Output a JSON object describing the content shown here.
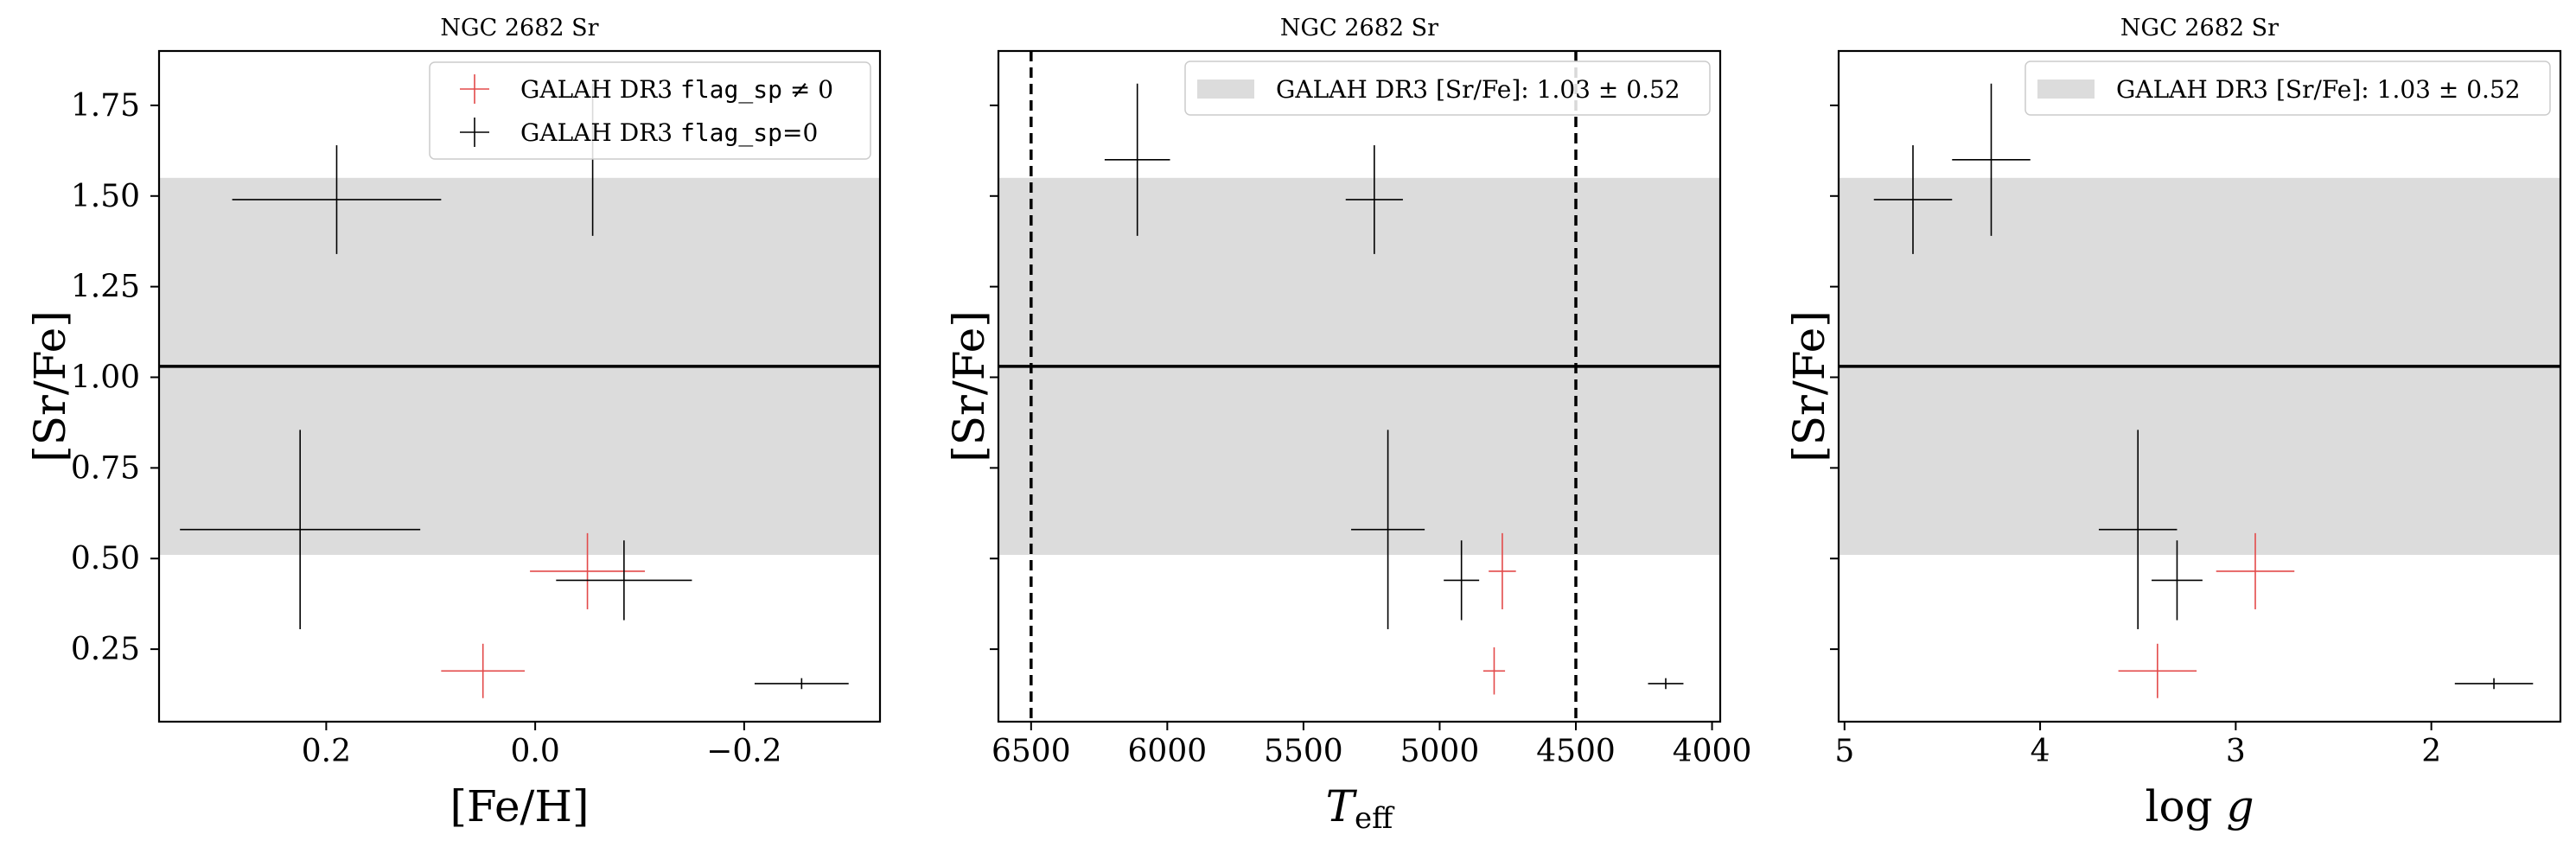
{
  "figure": {
    "colors": {
      "flagged": "#e34a4a",
      "clean": "#000000",
      "band": "#dcdcdc"
    }
  },
  "chart_data": [
    {
      "type": "scatter",
      "title": "NGC 2682 Sr",
      "xlabel": "[Fe/H]",
      "ylabel": "[Sr/Fe]",
      "xlim": [
        0.36,
        -0.33
      ],
      "ylim": [
        0.05,
        1.9
      ],
      "x_inverted": true,
      "xticks": [
        0.2,
        0.0,
        -0.2
      ],
      "xtick_labels": [
        "0.2",
        "0.0",
        "−0.2"
      ],
      "yticks": [
        0.25,
        0.5,
        0.75,
        1.0,
        1.25,
        1.5,
        1.75
      ],
      "ytick_labels": [
        "0.25",
        "0.50",
        "0.75",
        "1.00",
        "1.25",
        "1.50",
        "1.75"
      ],
      "show_ytick_labels": true,
      "band": {
        "center": 1.03,
        "half_width": 0.52
      },
      "legend": {
        "position": "top-right",
        "entries": [
          {
            "label": "GALAH DR3",
            "code": "flag_sp",
            "suffix": "≠ 0",
            "series": "flagged"
          },
          {
            "label": "GALAH DR3",
            "code": "flag_sp",
            "suffix": "=0",
            "series": "clean"
          }
        ]
      },
      "series": [
        {
          "name": "flagged",
          "points": [
            {
              "x": 0.05,
              "y": 0.19,
              "xerr": 0.04,
              "yerr": 0.075
            },
            {
              "x": -0.05,
              "y": 0.465,
              "xerr": 0.055,
              "yerr": 0.105
            }
          ]
        },
        {
          "name": "clean",
          "points": [
            {
              "x": 0.19,
              "y": 1.49,
              "xerr": 0.1,
              "yerr": 0.15
            },
            {
              "x": -0.055,
              "y": 1.6,
              "xerr": 0.0,
              "yerr": 0.21
            },
            {
              "x": 0.225,
              "y": 0.58,
              "xerr": 0.115,
              "yerr": 0.275
            },
            {
              "x": -0.085,
              "y": 0.44,
              "xerr": 0.065,
              "yerr": 0.11
            },
            {
              "x": -0.255,
              "y": 0.155,
              "xerr": 0.045,
              "yerr": 0.015
            }
          ]
        }
      ]
    },
    {
      "type": "scatter",
      "title": "NGC 2682 Sr",
      "xlabel": "T_eff",
      "ylabel": "[Sr/Fe]",
      "xlim": [
        6620,
        3970
      ],
      "ylim": [
        0.05,
        1.9
      ],
      "x_inverted": true,
      "xticks": [
        6500,
        6000,
        5500,
        5000,
        4500,
        4000
      ],
      "xtick_labels": [
        "6500",
        "6000",
        "5500",
        "5000",
        "4500",
        "4000"
      ],
      "yticks": [
        0.25,
        0.5,
        0.75,
        1.0,
        1.25,
        1.5,
        1.75
      ],
      "show_ytick_labels": false,
      "vlines": [
        6500,
        4500
      ],
      "band": {
        "center": 1.03,
        "half_width": 0.52
      },
      "legend": {
        "position": "top-right",
        "entries": [
          {
            "label": "GALAH DR3 [Sr/Fe]:",
            "value": "1.03 ± 0.52",
            "series": "band"
          }
        ]
      },
      "series": [
        {
          "name": "flagged",
          "points": [
            {
              "x": 4770,
              "y": 0.465,
              "xerr": 50,
              "yerr": 0.105
            },
            {
              "x": 4800,
              "y": 0.19,
              "xerr": 40,
              "yerr": 0.065
            }
          ]
        },
        {
          "name": "clean",
          "points": [
            {
              "x": 6110,
              "y": 1.6,
              "xerr": 120,
              "yerr": 0.21
            },
            {
              "x": 5240,
              "y": 1.49,
              "xerr": 105,
              "yerr": 0.15
            },
            {
              "x": 5190,
              "y": 0.58,
              "xerr": 135,
              "yerr": 0.275
            },
            {
              "x": 4920,
              "y": 0.44,
              "xerr": 65,
              "yerr": 0.11
            },
            {
              "x": 4170,
              "y": 0.155,
              "xerr": 65,
              "yerr": 0.015
            }
          ]
        }
      ]
    },
    {
      "type": "scatter",
      "title": "NGC 2682 Sr",
      "xlabel": "log g",
      "ylabel": "[Sr/Fe]",
      "xlim": [
        5.03,
        1.34
      ],
      "ylim": [
        0.05,
        1.9
      ],
      "x_inverted": true,
      "xticks": [
        5,
        4,
        3,
        2
      ],
      "xtick_labels": [
        "5",
        "4",
        "3",
        "2"
      ],
      "yticks": [
        0.25,
        0.5,
        0.75,
        1.0,
        1.25,
        1.5,
        1.75
      ],
      "show_ytick_labels": false,
      "band": {
        "center": 1.03,
        "half_width": 0.52
      },
      "legend": {
        "position": "top-right",
        "entries": [
          {
            "label": "GALAH DR3 [Sr/Fe]:",
            "value": "1.03 ± 0.52",
            "series": "band"
          }
        ]
      },
      "series": [
        {
          "name": "flagged",
          "points": [
            {
              "x": 2.9,
              "y": 0.465,
              "xerr": 0.2,
              "yerr": 0.105
            },
            {
              "x": 3.4,
              "y": 0.19,
              "xerr": 0.2,
              "yerr": 0.075
            }
          ]
        },
        {
          "name": "clean",
          "points": [
            {
              "x": 4.65,
              "y": 1.49,
              "xerr": 0.2,
              "yerr": 0.15
            },
            {
              "x": 4.25,
              "y": 1.6,
              "xerr": 0.2,
              "yerr": 0.21
            },
            {
              "x": 3.5,
              "y": 0.58,
              "xerr": 0.2,
              "yerr": 0.275
            },
            {
              "x": 3.3,
              "y": 0.44,
              "xerr": 0.13,
              "yerr": 0.11
            },
            {
              "x": 1.68,
              "y": 0.155,
              "xerr": 0.2,
              "yerr": 0.015
            }
          ]
        }
      ]
    }
  ]
}
